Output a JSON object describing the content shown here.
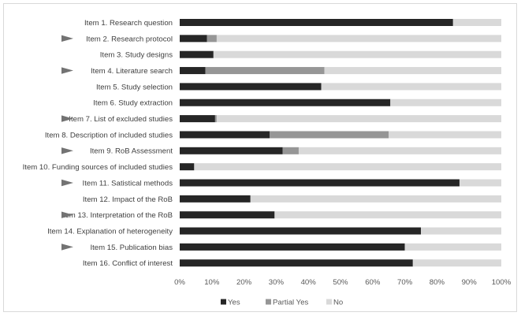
{
  "chart_data": {
    "type": "bar",
    "orientation": "horizontal",
    "stacked": true,
    "percent_stacked": true,
    "categories": [
      "Item 1. Research question",
      "Item 2. Research protocol",
      "Item 3. Study designs",
      "Item 4. Literature search",
      "Item 5. Study selection",
      "Item 6. Study extraction",
      "Item 7. List of excluded studies",
      "Item 8. Description of included studies",
      "Item 9. RoB Assessment",
      "Item 10. Funding sources of included studies",
      "Item 11. Satistical methods",
      "Item 12. Impact of the RoB",
      "Item 13. Interpretation of the RoB",
      "Item 14. Explanation of heterogeneity",
      "Item 15. Publication bias",
      "Item 16. Conflict of interest"
    ],
    "marked_items": [
      false,
      true,
      false,
      true,
      false,
      false,
      true,
      false,
      true,
      false,
      true,
      false,
      true,
      false,
      true,
      false
    ],
    "series": [
      {
        "name": "Yes",
        "color": "#262626",
        "values": [
          85,
          8.5,
          10.5,
          8,
          44,
          65.5,
          11,
          28,
          32,
          4.5,
          87,
          22,
          29.5,
          75,
          70,
          72.5
        ]
      },
      {
        "name": "Partial Yes",
        "color": "#969696",
        "values": [
          0,
          3,
          0,
          37,
          0,
          0,
          0.5,
          37,
          5,
          0,
          0,
          0,
          0,
          0,
          0,
          0
        ]
      },
      {
        "name": "No",
        "color": "#d9d9d9",
        "values": [
          15,
          88.5,
          89.5,
          55,
          56,
          34.5,
          88.5,
          35,
          63,
          95.5,
          13,
          78,
          70.5,
          25,
          30,
          27.5
        ]
      }
    ],
    "xlim": [
      0,
      100
    ],
    "x_ticks": [
      "0%",
      "10%",
      "20%",
      "30%",
      "40%",
      "50%",
      "60%",
      "70%",
      "80%",
      "90%",
      "100%"
    ],
    "grid": false,
    "legend_position": "bottom",
    "xlabel": "",
    "ylabel": "",
    "title": ""
  }
}
